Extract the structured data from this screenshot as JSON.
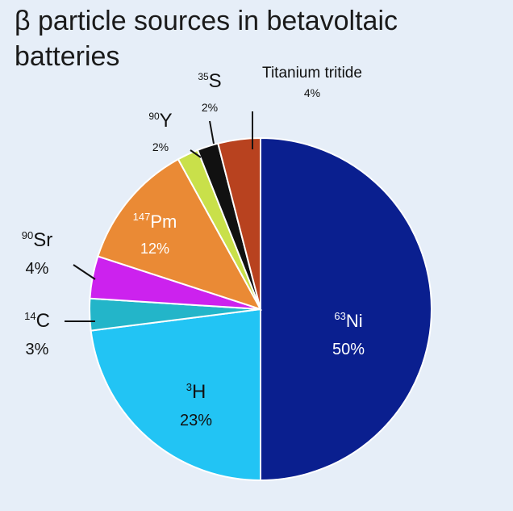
{
  "chart_data": {
    "type": "pie",
    "title": "β particle sources in betavoltaic batteries",
    "slices": [
      {
        "label": "Ni",
        "mass": "63",
        "value": 50,
        "display": "50%",
        "color": "#0a1f8f"
      },
      {
        "label": "H",
        "mass": "3",
        "value": 23,
        "display": "23%",
        "color": "#22c4f4"
      },
      {
        "label": "C",
        "mass": "14",
        "value": 3,
        "display": "3%",
        "color": "#23b5c9"
      },
      {
        "label": "Sr",
        "mass": "90",
        "value": 4,
        "display": "4%",
        "color": "#cc22ee"
      },
      {
        "label": "Pm",
        "mass": "147",
        "value": 12,
        "display": "12%",
        "color": "#ea8a35"
      },
      {
        "label": "Y",
        "mass": "90",
        "value": 2,
        "display": "2%",
        "color": "#c9e04a"
      },
      {
        "label": "S",
        "mass": "35",
        "value": 2,
        "display": "2%",
        "color": "#111111"
      },
      {
        "label": "Titanium tritide",
        "mass": "",
        "value": 4,
        "display": "4%",
        "color": "#b8421f"
      }
    ]
  }
}
